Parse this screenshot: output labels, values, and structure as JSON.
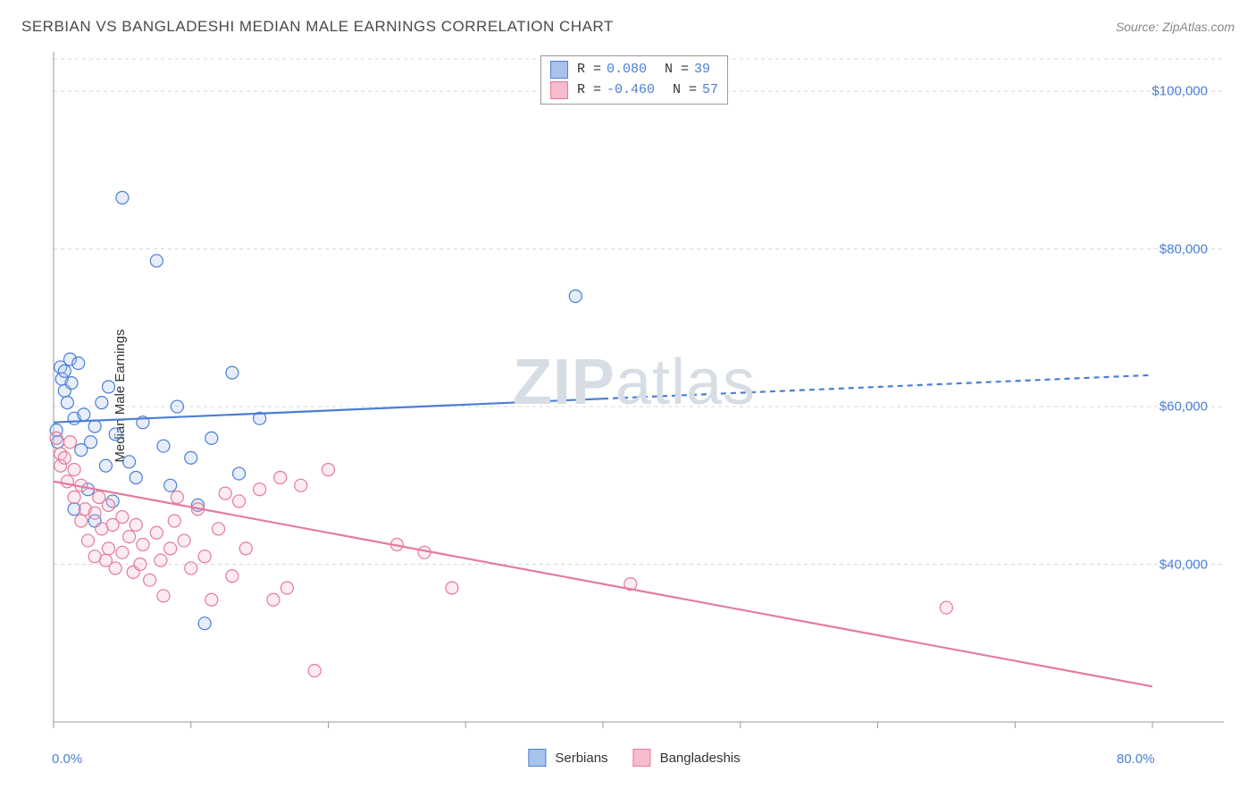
{
  "title": "SERBIAN VS BANGLADESHI MEDIAN MALE EARNINGS CORRELATION CHART",
  "source": "Source: ZipAtlas.com",
  "ylabel": "Median Male Earnings",
  "watermark_bold": "ZIP",
  "watermark_light": "atlas",
  "chart": {
    "type": "scatter",
    "background_color": "#ffffff",
    "grid_color": "#d8d8d8",
    "grid_dash": "4,4",
    "axis_color": "#999999",
    "xlim": [
      0,
      80
    ],
    "ylim": [
      20000,
      105000
    ],
    "xtick_labels": {
      "0": "0.0%",
      "80": "80.0%"
    },
    "xtick_positions": [
      0,
      10,
      20,
      30,
      40,
      50,
      60,
      70,
      80
    ],
    "ytick_positions": [
      40000,
      60000,
      80000,
      100000
    ],
    "ytick_labels": {
      "40000": "$40,000",
      "60000": "$60,000",
      "80000": "$80,000",
      "100000": "$100,000"
    },
    "marker_radius": 7,
    "marker_stroke_width": 1.2,
    "marker_fill_opacity": 0.28,
    "series": [
      {
        "name": "Serbians",
        "color_stroke": "#4a7fd6",
        "color_fill": "#a8c3ea",
        "trend": {
          "x1": 0,
          "y1": 58000,
          "x2": 40,
          "y2": 61000,
          "x3": 80,
          "y3": 64000,
          "solid_until_x": 40,
          "width": 2.2
        },
        "R_label": "R =",
        "R_value": " 0.080",
        "N_label": "N =",
        "N_value": "39",
        "points": [
          [
            0.2,
            57000
          ],
          [
            0.3,
            55500
          ],
          [
            0.5,
            65000
          ],
          [
            0.6,
            63500
          ],
          [
            0.8,
            62000
          ],
          [
            0.8,
            64500
          ],
          [
            1.0,
            60500
          ],
          [
            1.2,
            66000
          ],
          [
            1.3,
            63000
          ],
          [
            1.5,
            58500
          ],
          [
            1.5,
            47000
          ],
          [
            1.8,
            65500
          ],
          [
            2.0,
            54500
          ],
          [
            2.2,
            59000
          ],
          [
            2.5,
            49500
          ],
          [
            2.7,
            55500
          ],
          [
            3.0,
            57500
          ],
          [
            3.0,
            45500
          ],
          [
            3.5,
            60500
          ],
          [
            3.8,
            52500
          ],
          [
            4.0,
            62500
          ],
          [
            4.3,
            48000
          ],
          [
            4.5,
            56500
          ],
          [
            5.0,
            86500
          ],
          [
            5.5,
            53000
          ],
          [
            6.0,
            51000
          ],
          [
            6.5,
            58000
          ],
          [
            7.5,
            78500
          ],
          [
            8.0,
            55000
          ],
          [
            8.5,
            50000
          ],
          [
            9.0,
            60000
          ],
          [
            10.0,
            53500
          ],
          [
            10.5,
            47500
          ],
          [
            11.0,
            32500
          ],
          [
            11.5,
            56000
          ],
          [
            13.0,
            64300
          ],
          [
            13.5,
            51500
          ],
          [
            15.0,
            58500
          ],
          [
            38.0,
            74000
          ]
        ]
      },
      {
        "name": "Bangladeshis",
        "color_stroke": "#e67a9b",
        "color_fill": "#f5bccb",
        "trend": {
          "x1": 0,
          "y1": 50500,
          "x2": 80,
          "y2": 24500,
          "solid_until_x": 80,
          "width": 2.2
        },
        "R_label": "R =",
        "R_value": "-0.460",
        "N_label": "N =",
        "N_value": "57",
        "points": [
          [
            0.2,
            56000
          ],
          [
            0.5,
            54000
          ],
          [
            0.5,
            52500
          ],
          [
            0.8,
            53500
          ],
          [
            1.0,
            50500
          ],
          [
            1.2,
            55500
          ],
          [
            1.5,
            52000
          ],
          [
            1.5,
            48500
          ],
          [
            2.0,
            50000
          ],
          [
            2.0,
            45500
          ],
          [
            2.3,
            47000
          ],
          [
            2.5,
            43000
          ],
          [
            3.0,
            46500
          ],
          [
            3.0,
            41000
          ],
          [
            3.3,
            48500
          ],
          [
            3.5,
            44500
          ],
          [
            3.8,
            40500
          ],
          [
            4.0,
            47500
          ],
          [
            4.0,
            42000
          ],
          [
            4.3,
            45000
          ],
          [
            4.5,
            39500
          ],
          [
            5.0,
            46000
          ],
          [
            5.0,
            41500
          ],
          [
            5.5,
            43500
          ],
          [
            5.8,
            39000
          ],
          [
            6.0,
            45000
          ],
          [
            6.3,
            40000
          ],
          [
            6.5,
            42500
          ],
          [
            7.0,
            38000
          ],
          [
            7.5,
            44000
          ],
          [
            7.8,
            40500
          ],
          [
            8.0,
            36000
          ],
          [
            8.5,
            42000
          ],
          [
            8.8,
            45500
          ],
          [
            9.0,
            48500
          ],
          [
            9.5,
            43000
          ],
          [
            10.0,
            39500
          ],
          [
            10.5,
            47000
          ],
          [
            11.0,
            41000
          ],
          [
            11.5,
            35500
          ],
          [
            12.0,
            44500
          ],
          [
            12.5,
            49000
          ],
          [
            13.0,
            38500
          ],
          [
            13.5,
            48000
          ],
          [
            14.0,
            42000
          ],
          [
            15.0,
            49500
          ],
          [
            16.0,
            35500
          ],
          [
            16.5,
            51000
          ],
          [
            17.0,
            37000
          ],
          [
            18.0,
            50000
          ],
          [
            19.0,
            26500
          ],
          [
            20.0,
            52000
          ],
          [
            25.0,
            42500
          ],
          [
            27.0,
            41500
          ],
          [
            29.0,
            37000
          ],
          [
            42.0,
            37500
          ],
          [
            65.0,
            34500
          ]
        ]
      }
    ]
  },
  "legend_bottom": [
    {
      "label": "Serbians",
      "fill": "#a8c3ea",
      "stroke": "#4a7fd6"
    },
    {
      "label": "Bangladeshis",
      "fill": "#f5bccb",
      "stroke": "#e67a9b"
    }
  ]
}
